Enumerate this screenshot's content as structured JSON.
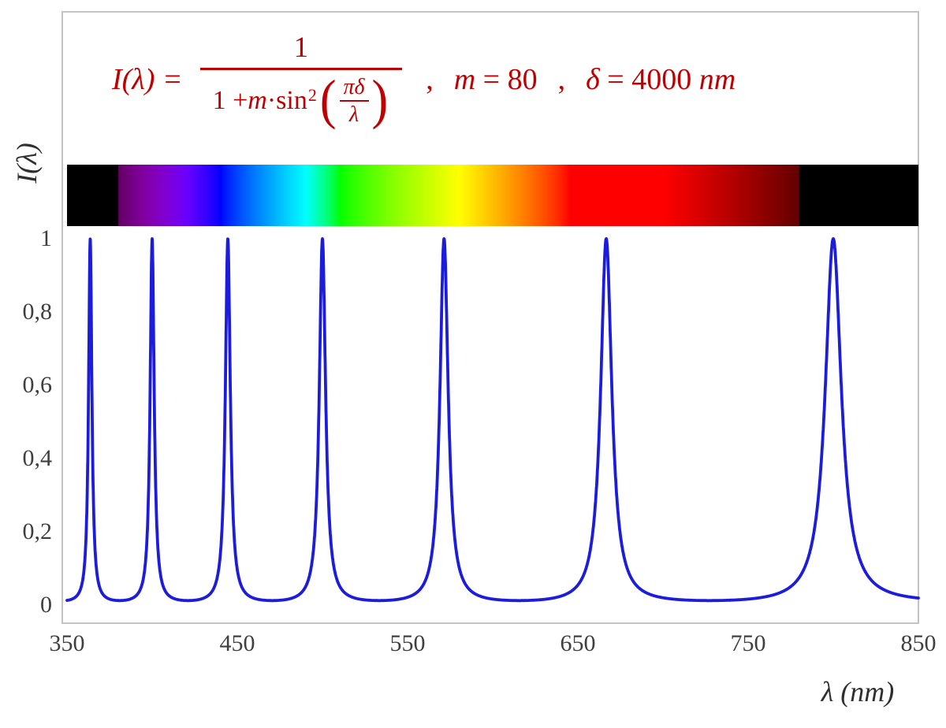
{
  "figure": {
    "formula": {
      "lhs": "I(λ) =",
      "numerator": "1",
      "den_pre": "1 + ",
      "den_var": "m",
      "den_dot": " · ",
      "den_fn": "sin",
      "den_sup": "2",
      "paren_open": "(",
      "paren_close": ")",
      "inner_num": "πδ",
      "inner_den": "λ",
      "separator": ",",
      "param_m_var": "m",
      "param_m_rest": " = 80",
      "param_delta_var": "δ",
      "param_delta_rest": " = 4000 ",
      "param_delta_unit": "nm"
    },
    "y_axis_label": "I(λ)",
    "x_axis_label": "λ  (nm)",
    "y_ticks": [
      "1",
      "0,8",
      "0,6",
      "0,4",
      "0,2",
      "0"
    ],
    "x_ticks": [
      "350",
      "450",
      "550",
      "650",
      "750",
      "850"
    ]
  },
  "chart_data": {
    "type": "line",
    "title": "I(λ) = 1 / (1 + m·sin²(πδ/λ)) ,  m = 80 ,  δ = 4000 nm",
    "xlabel": "λ (nm)",
    "ylabel": "I(λ)",
    "xlim": [
      350,
      850
    ],
    "ylim": [
      0,
      1
    ],
    "x_ticks": [
      350,
      450,
      550,
      650,
      750,
      850
    ],
    "y_ticks": [
      0,
      0.2,
      0.4,
      0.6,
      0.8,
      1
    ],
    "grid": false,
    "legend": false,
    "function": "I(lambda) = 1 / (1 + m * sin^2(pi * delta / lambda))",
    "params": {
      "m": 80,
      "delta_nm": 4000
    },
    "peak_wavelengths_nm": [
      363.64,
      400,
      444.44,
      500,
      571.43,
      666.67,
      800
    ],
    "peak_value": 1,
    "baseline_value": 0.0123,
    "series": [
      {
        "name": "I(λ)",
        "color": "#1C1CDC"
      }
    ],
    "spectrum_bar": {
      "wavelength_range_nm": [
        350,
        850
      ],
      "visible_light_nm": [
        380,
        780
      ]
    }
  },
  "colors": {
    "formula": "#C00000",
    "curve": "#1C1CDC",
    "axis_text": "#3F3F3F",
    "frame_border": "#C3C3C3"
  }
}
